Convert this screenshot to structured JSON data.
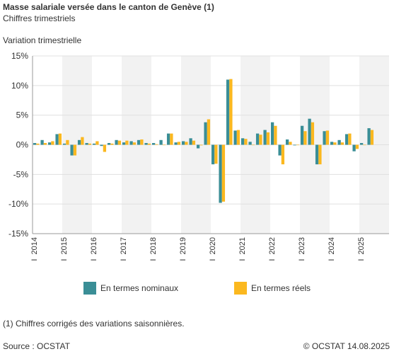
{
  "header": {
    "title": "Masse salariale versée dans le canton de Genève (1)",
    "subtitle": "Chiffres trimestriels",
    "axis_title": "Variation trimestrielle"
  },
  "footer": {
    "footnote": "(1) Chiffres corrigés des variations saisonnières.",
    "source": "Source : OCSTAT",
    "copyright": "© OCSTAT 14.08.2025"
  },
  "colors": {
    "nominal": "#3a8e96",
    "real": "#fbb81f",
    "band": "#f2f2f2",
    "grid": "#e0e0e0",
    "axis": "#999999"
  },
  "chart_data": {
    "type": "bar",
    "ylim": [
      -15,
      15
    ],
    "yticks": [
      {
        "value": 15,
        "label": "15%"
      },
      {
        "value": 10,
        "label": "10%"
      },
      {
        "value": 5,
        "label": "5%"
      },
      {
        "value": 0,
        "label": "0%"
      },
      {
        "value": -5,
        "label": "-5%"
      },
      {
        "value": -10,
        "label": "-10%"
      },
      {
        "value": -15,
        "label": "-15%"
      }
    ],
    "year_labels": [
      "I  2014",
      "I  2015",
      "I  2016",
      "I  2017",
      "I  2018",
      "I  2019",
      "I  2020",
      "I  2021",
      "I  2022",
      "I  2023",
      "I  2024",
      "I  2025"
    ],
    "series": [
      {
        "name": "En termes nominaux",
        "values": [
          0.3,
          0.8,
          0.4,
          1.8,
          0.2,
          -1.8,
          0.8,
          0.3,
          0.2,
          -0.2,
          0.3,
          0.8,
          0.4,
          0.6,
          0.8,
          0.3,
          0.3,
          0.8,
          1.9,
          0.4,
          0.6,
          1.1,
          -0.6,
          3.8,
          -3.3,
          -9.8,
          11.0,
          2.4,
          1.1,
          0.5,
          1.9,
          2.5,
          3.8,
          -1.8,
          0.9,
          -0.1,
          3.2,
          4.4,
          -3.3,
          2.3,
          0.5,
          0.8,
          1.8,
          -1.1,
          0.3,
          2.8
        ]
      },
      {
        "name": "En termes réels",
        "values": [
          0.2,
          0.3,
          0.6,
          1.9,
          0.8,
          -1.8,
          1.3,
          0.2,
          0.6,
          -1.2,
          0.2,
          0.7,
          0.7,
          0.4,
          0.9,
          0.2,
          0.1,
          0.0,
          1.9,
          0.5,
          0.5,
          0.7,
          -0.1,
          4.3,
          -3.2,
          -9.6,
          11.1,
          2.5,
          1.0,
          0.0,
          1.7,
          2.1,
          3.2,
          -3.3,
          0.5,
          0.0,
          2.3,
          3.8,
          -3.3,
          2.4,
          0.4,
          0.4,
          1.9,
          -0.7,
          0.0,
          2.5
        ]
      }
    ],
    "legend_position": "bottom"
  }
}
